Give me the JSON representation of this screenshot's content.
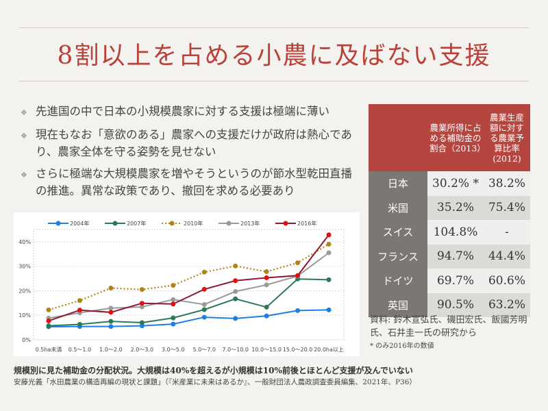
{
  "title": "8割以上を占める小農に及ばない支援",
  "bullets": [
    "先進国の中で日本の小規模農家に対する支援は極端に薄い",
    "現在もなお「意欲のある」農家への支援だけが政府は熱心であり、農家全体を守る姿勢を見せない",
    "さらに極端な大規模農家を増やそうというのが節水型乾田直播の推進。異常な政策であり、撤回を求める必要あり"
  ],
  "chart_data": {
    "type": "line",
    "categories": [
      "0.5ha未満",
      "0.5～1.0",
      "1.0～2.0",
      "2.0～3.0",
      "3.0～5.0",
      "5.0～7.0",
      "7.0～10.0",
      "10.0～15.0",
      "15.0～20.0",
      "20.0ha以上"
    ],
    "ylim": [
      0,
      45
    ],
    "yticks": [
      "0%",
      "10%",
      "20%",
      "30%",
      "40%"
    ],
    "grid": true,
    "legend": "top",
    "series": [
      {
        "name": "2004年",
        "color": "#1f7fe0",
        "line": "#1f7fe0",
        "dash": false,
        "values": [
          5.3,
          5.4,
          5.4,
          5.7,
          6.4,
          9.2,
          8.7,
          9.7,
          11.9,
          12.2
        ]
      },
      {
        "name": "2007年",
        "color": "#2a7a55",
        "line": "#2a7a55",
        "dash": false,
        "values": [
          5.7,
          6.3,
          7.5,
          7.0,
          8.9,
          12.3,
          16.7,
          13.3,
          24.8,
          24.5
        ]
      },
      {
        "name": "2010年",
        "color": "#b08416",
        "line": "#b08416",
        "dash": true,
        "values": [
          12.2,
          16.0,
          21.1,
          20.5,
          22.2,
          27.6,
          30.1,
          27.8,
          31.4,
          39.0
        ]
      },
      {
        "name": "2013年",
        "color": "#9a9a9a",
        "line": "#9a9a9a",
        "dash": false,
        "values": [
          8.8,
          11.0,
          12.9,
          13.4,
          16.4,
          14.4,
          19.7,
          22.4,
          26.0,
          35.5
        ]
      },
      {
        "name": "2016年",
        "color": "#e01010",
        "line": "#8e1830",
        "dash": false,
        "values": [
          7.7,
          12.1,
          11.2,
          14.9,
          14.6,
          20.6,
          24.1,
          25.3,
          26.2,
          42.8
        ]
      }
    ]
  },
  "table": {
    "headers": [
      "",
      "農業所得に占める補助金の割合（2013）",
      "農業生産額に対する農業予算比率(2012)"
    ],
    "rows": [
      [
        "日本",
        "30.2% *",
        "38.2%"
      ],
      [
        "米国",
        "35.2%",
        "75.4%"
      ],
      [
        "スイス",
        "104.8%",
        "-"
      ],
      [
        "フランス",
        "94.7%",
        "44.4%"
      ],
      [
        "ドイツ",
        "69.7%",
        "60.6%"
      ],
      [
        "英国",
        "90.5%",
        "63.2%"
      ]
    ]
  },
  "source": "資料: 鈴木宣弘氏、磯田宏氏、飯國芳明氏、石井圭一氏の研究から",
  "note": "* のみ2016年の数値",
  "caption": "規模別に見た補助金の分配状況。大規模は40%を超えるが小規模は10%前後とほとんど支援が及んでいない",
  "citation": "安藤光義「水田農業の構造再編の現状と課題」（『米産業に未来はあるか』、一般財団法人農政調査委員編集、2021年、P36）"
}
